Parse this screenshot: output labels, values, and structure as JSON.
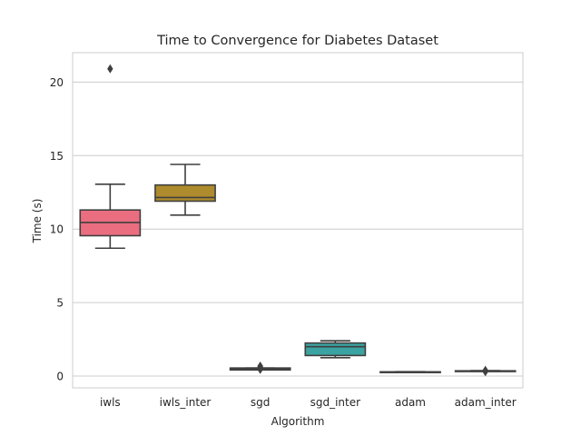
{
  "chart_data": {
    "type": "box",
    "title": "Time to Convergence for Diabetes Dataset",
    "xlabel": "Algorithm",
    "ylabel": "Time (s)",
    "ylim": [
      -0.8,
      22
    ],
    "yticks": [
      0,
      5,
      10,
      15,
      20
    ],
    "grid": "horizontal",
    "categories": [
      "iwls",
      "iwls_inter",
      "sgd",
      "sgd_inter",
      "adam",
      "adam_inter"
    ],
    "boxes": [
      {
        "category": "iwls",
        "color": "#ea6d80",
        "whisker_low": 8.7,
        "q1": 9.55,
        "median": 10.45,
        "q3": 11.3,
        "whisker_high": 13.05,
        "outliers": [
          20.9
        ]
      },
      {
        "category": "iwls_inter",
        "color": "#ae8b2d",
        "whisker_low": 10.95,
        "q1": 11.9,
        "median": 12.15,
        "q3": 13.0,
        "whisker_high": 14.4,
        "outliers": []
      },
      {
        "category": "sgd",
        "color": "#56ae6c",
        "whisker_low": 0.42,
        "q1": 0.42,
        "median": 0.48,
        "q3": 0.55,
        "whisker_high": 0.55,
        "outliers": [
          0.62,
          0.68,
          0.45
        ]
      },
      {
        "category": "sgd_inter",
        "color": "#3ba3a1",
        "whisker_low": 1.25,
        "q1": 1.4,
        "median": 2.0,
        "q3": 2.25,
        "whisker_high": 2.4,
        "outliers": []
      },
      {
        "category": "adam",
        "color": "#6b8fd8",
        "whisker_low": 0.27,
        "q1": 0.28,
        "median": 0.28,
        "q3": 0.29,
        "whisker_high": 0.3,
        "outliers": []
      },
      {
        "category": "adam_inter",
        "color": "#c872d8",
        "whisker_low": 0.32,
        "q1": 0.34,
        "median": 0.35,
        "q3": 0.36,
        "whisker_high": 0.37,
        "outliers": [
          0.3,
          0.4
        ]
      }
    ]
  }
}
